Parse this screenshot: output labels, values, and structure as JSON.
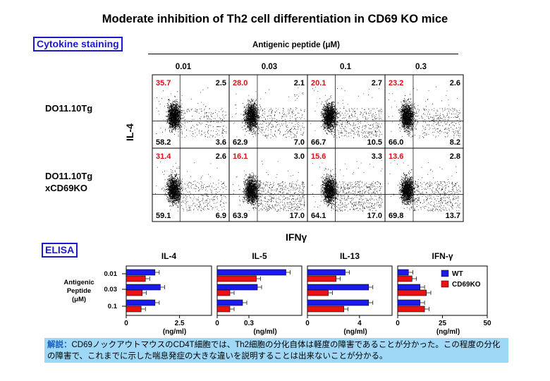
{
  "title": "Moderate inhibition of Th2 cell differentiation in CD69 KO mice",
  "sections": {
    "cytokine": "Cytokine staining",
    "elisa": "ELISA"
  },
  "flow": {
    "antigen_header": "Antigenic peptide (μM)",
    "concentrations": [
      "0.01",
      "0.03",
      "0.1",
      "0.3"
    ],
    "rows": [
      {
        "label_lines": [
          "DO11.10Tg"
        ],
        "panels": [
          {
            "tl": "35.7",
            "tr": "2.5",
            "bl": "58.2",
            "br": "3.6"
          },
          {
            "tl": "28.0",
            "tr": "2.1",
            "bl": "62.9",
            "br": "7.0"
          },
          {
            "tl": "20.1",
            "tr": "2.7",
            "bl": "66.7",
            "br": "10.5"
          },
          {
            "tl": "23.2",
            "tr": "2.6",
            "bl": "66.0",
            "br": "8.2"
          }
        ]
      },
      {
        "label_lines": [
          "DO11.10Tg",
          "xCD69KO"
        ],
        "panels": [
          {
            "tl": "31.4",
            "tr": "2.6",
            "bl": "59.1",
            "br": "6.9"
          },
          {
            "tl": "16.1",
            "tr": "3.0",
            "bl": "63.9",
            "br": "17.0"
          },
          {
            "tl": "15.6",
            "tr": "3.3",
            "bl": "64.1",
            "br": "17.0"
          },
          {
            "tl": "13.6",
            "tr": "2.8",
            "bl": "69.8",
            "br": "13.7"
          }
        ]
      }
    ],
    "y_axis": "IL-4",
    "x_axis": "IFNγ"
  },
  "chart_data": [
    {
      "type": "bar",
      "title": "IL-4",
      "xlabel": "(ng/ml)",
      "xlim": [
        0,
        4
      ],
      "ticks": [
        "0",
        "2.5"
      ],
      "tick_values": [
        0,
        2.5
      ],
      "categories": [
        "0.01",
        "0.03",
        "0.1"
      ],
      "series": [
        {
          "name": "WT",
          "values": [
            1.35,
            1.6,
            1.35
          ]
        },
        {
          "name": "CD69KO",
          "values": [
            0.9,
            0.75,
            0.7
          ]
        }
      ]
    },
    {
      "type": "bar",
      "title": "IL-5",
      "xlabel": "(ng/ml)",
      "xlim": [
        0,
        0.8
      ],
      "ticks": [
        "0",
        "0.3"
      ],
      "tick_values": [
        0,
        0.3
      ],
      "categories": [
        "0.01",
        "0.03",
        "0.1"
      ],
      "series": [
        {
          "name": "WT",
          "values": [
            0.65,
            0.38,
            0.24
          ]
        },
        {
          "name": "CD69KO",
          "values": [
            0.37,
            0.12,
            0.12
          ]
        }
      ]
    },
    {
      "type": "bar",
      "title": "IL-13",
      "xlabel": "(ng/ml)",
      "xlim": [
        0,
        6.5
      ],
      "ticks": [
        "0",
        "4"
      ],
      "tick_values": [
        0,
        4
      ],
      "categories": [
        "0.01",
        "0.03",
        "0.1"
      ],
      "series": [
        {
          "name": "WT",
          "values": [
            2.9,
            4.7,
            4.7
          ]
        },
        {
          "name": "CD69KO",
          "values": [
            2.2,
            1.6,
            2.8
          ]
        }
      ]
    },
    {
      "type": "bar",
      "title": "IFN-γ",
      "xlabel": "(ng/ml)",
      "xlim": [
        0,
        50
      ],
      "ticks": [
        "0",
        "25",
        "50"
      ],
      "tick_values": [
        0,
        25,
        50
      ],
      "categories": [
        "0.01",
        "0.03",
        "0.1"
      ],
      "series": [
        {
          "name": "WT",
          "values": [
            6.0,
            12.5,
            12.5
          ]
        },
        {
          "name": "CD69KO",
          "values": [
            8.0,
            16.0,
            15.0
          ]
        }
      ]
    }
  ],
  "elisa_legend": [
    {
      "name": "WT",
      "color": "#1a1aee"
    },
    {
      "name": "CD69KO",
      "color": "#ee1111"
    }
  ],
  "elisa_ylabel_lines": [
    "Antigenic",
    "Peptide",
    "(μM)"
  ],
  "colors": {
    "wt": "#1a1aee",
    "ko": "#ee1111",
    "accent": "#1a1acc",
    "note_bg": "#9fd7f6",
    "red_text": "#dd1111"
  },
  "note": {
    "lead": "解説：",
    "text": "CD69ノックアウトマウスのCD4T細胞では、Th2細胞の分化自体は軽度の障害であることが分かった。この程度の分化の障害で、これまでに示した喘息発症の大きな違いを説明することは出来ないことが分かる。"
  }
}
